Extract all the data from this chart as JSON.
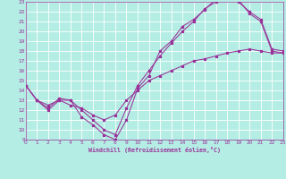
{
  "xlabel": "Windchill (Refroidissement éolien,°C)",
  "line_color": "#993399",
  "bg_color": "#b4ede4",
  "grid_color": "#ffffff",
  "xlim": [
    0,
    23
  ],
  "ylim": [
    9,
    23
  ],
  "xticks": [
    0,
    1,
    2,
    3,
    4,
    5,
    6,
    7,
    8,
    9,
    10,
    11,
    12,
    13,
    14,
    15,
    16,
    17,
    18,
    19,
    20,
    21,
    22,
    23
  ],
  "yticks": [
    9,
    10,
    11,
    12,
    13,
    14,
    15,
    16,
    17,
    18,
    19,
    20,
    21,
    22,
    23
  ],
  "s1x": [
    0,
    1,
    2,
    3,
    4,
    5,
    6,
    7,
    8,
    9,
    10,
    11,
    12,
    13,
    14,
    15,
    16,
    17,
    18,
    19,
    20,
    21,
    22,
    23
  ],
  "s1y": [
    14.5,
    13.0,
    12.0,
    13.0,
    13.0,
    11.3,
    10.5,
    9.5,
    9.0,
    11.0,
    14.2,
    15.5,
    18.0,
    19.0,
    20.5,
    21.2,
    22.2,
    23.3,
    23.5,
    23.0,
    22.0,
    21.2,
    18.2,
    18.0
  ],
  "s2x": [
    0,
    1,
    2,
    3,
    4,
    5,
    6,
    7,
    8,
    9,
    10,
    11,
    12,
    13,
    14,
    15,
    16,
    17,
    18,
    19,
    20,
    21,
    22,
    23
  ],
  "s2y": [
    14.5,
    13.0,
    12.2,
    13.2,
    13.0,
    12.0,
    11.0,
    10.0,
    9.5,
    12.2,
    14.5,
    16.0,
    17.5,
    18.8,
    20.0,
    21.0,
    22.3,
    23.0,
    23.5,
    23.2,
    21.8,
    21.0,
    18.0,
    17.8
  ],
  "s3x": [
    0,
    1,
    2,
    3,
    4,
    5,
    6,
    7,
    8,
    9,
    10,
    11,
    12,
    13,
    14,
    15,
    16,
    17,
    18,
    19,
    20,
    21,
    22,
    23
  ],
  "s3y": [
    14.5,
    13.0,
    12.5,
    13.0,
    12.5,
    12.2,
    11.5,
    11.0,
    11.5,
    13.0,
    14.0,
    15.0,
    15.5,
    16.0,
    16.5,
    17.0,
    17.2,
    17.5,
    17.8,
    18.0,
    18.2,
    18.0,
    17.8,
    17.8
  ],
  "tick_fontsize": 4.2,
  "xlabel_fontsize": 4.8,
  "marker_size": 2.2,
  "line_width": 0.75
}
